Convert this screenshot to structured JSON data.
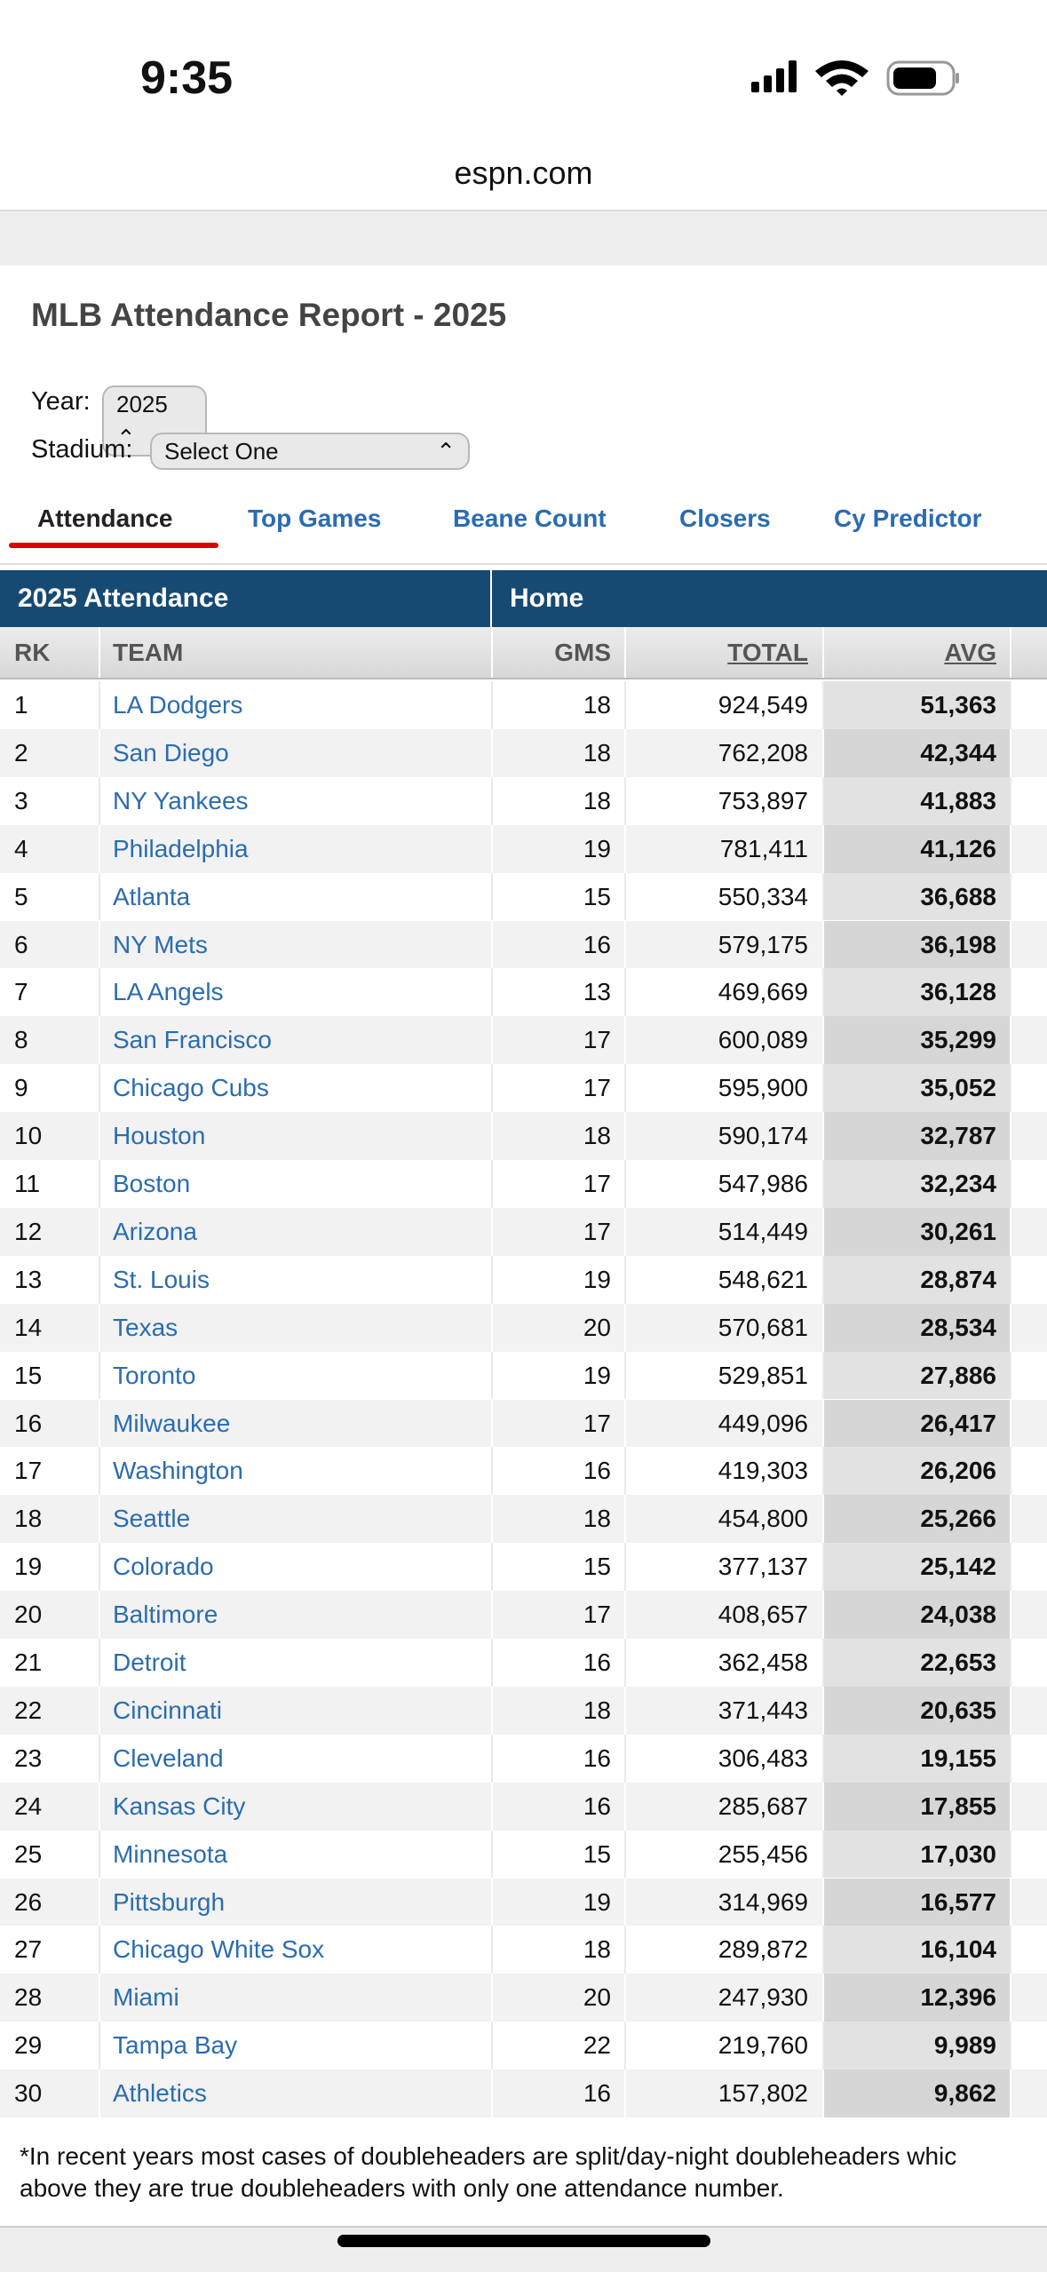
{
  "status": {
    "time": "9:35"
  },
  "url": "espn.com",
  "title": "MLB Attendance Report - 2025",
  "filters": {
    "year_label": "Year:",
    "year_value": "2025",
    "stadium_label": "Stadium:",
    "stadium_value": "Select One"
  },
  "tabs": [
    "Attendance",
    "Top Games",
    "Beane Count",
    "Closers",
    "Cy Predictor"
  ],
  "table": {
    "group_headers": [
      "2025 Attendance",
      "Home"
    ],
    "columns": [
      "RK",
      "TEAM",
      "GMS",
      "TOTAL",
      "AVG"
    ],
    "rows": [
      [
        1,
        "LA Dodgers",
        18,
        "924,549",
        "51,363"
      ],
      [
        2,
        "San Diego",
        18,
        "762,208",
        "42,344"
      ],
      [
        3,
        "NY Yankees",
        18,
        "753,897",
        "41,883"
      ],
      [
        4,
        "Philadelphia",
        19,
        "781,411",
        "41,126"
      ],
      [
        5,
        "Atlanta",
        15,
        "550,334",
        "36,688"
      ],
      [
        6,
        "NY Mets",
        16,
        "579,175",
        "36,198"
      ],
      [
        7,
        "LA Angels",
        13,
        "469,669",
        "36,128"
      ],
      [
        8,
        "San Francisco",
        17,
        "600,089",
        "35,299"
      ],
      [
        9,
        "Chicago Cubs",
        17,
        "595,900",
        "35,052"
      ],
      [
        10,
        "Houston",
        18,
        "590,174",
        "32,787"
      ],
      [
        11,
        "Boston",
        17,
        "547,986",
        "32,234"
      ],
      [
        12,
        "Arizona",
        17,
        "514,449",
        "30,261"
      ],
      [
        13,
        "St. Louis",
        19,
        "548,621",
        "28,874"
      ],
      [
        14,
        "Texas",
        20,
        "570,681",
        "28,534"
      ],
      [
        15,
        "Toronto",
        19,
        "529,851",
        "27,886"
      ],
      [
        16,
        "Milwaukee",
        17,
        "449,096",
        "26,417"
      ],
      [
        17,
        "Washington",
        16,
        "419,303",
        "26,206"
      ],
      [
        18,
        "Seattle",
        18,
        "454,800",
        "25,266"
      ],
      [
        19,
        "Colorado",
        15,
        "377,137",
        "25,142"
      ],
      [
        20,
        "Baltimore",
        17,
        "408,657",
        "24,038"
      ],
      [
        21,
        "Detroit",
        16,
        "362,458",
        "22,653"
      ],
      [
        22,
        "Cincinnati",
        18,
        "371,443",
        "20,635"
      ],
      [
        23,
        "Cleveland",
        16,
        "306,483",
        "19,155"
      ],
      [
        24,
        "Kansas City",
        16,
        "285,687",
        "17,855"
      ],
      [
        25,
        "Minnesota",
        15,
        "255,456",
        "17,030"
      ],
      [
        26,
        "Pittsburgh",
        19,
        "314,969",
        "16,577"
      ],
      [
        27,
        "Chicago White Sox",
        18,
        "289,872",
        "16,104"
      ],
      [
        28,
        "Miami",
        20,
        "247,930",
        "12,396"
      ],
      [
        29,
        "Tampa Bay",
        22,
        "219,760",
        "9,989"
      ],
      [
        30,
        "Athletics",
        16,
        "157,802",
        "9,862"
      ]
    ]
  },
  "footnote": [
    "*In recent years most cases of doubleheaders are split/day-night doubleheaders whic",
    "above they are true doubleheaders with only one attendance number."
  ]
}
